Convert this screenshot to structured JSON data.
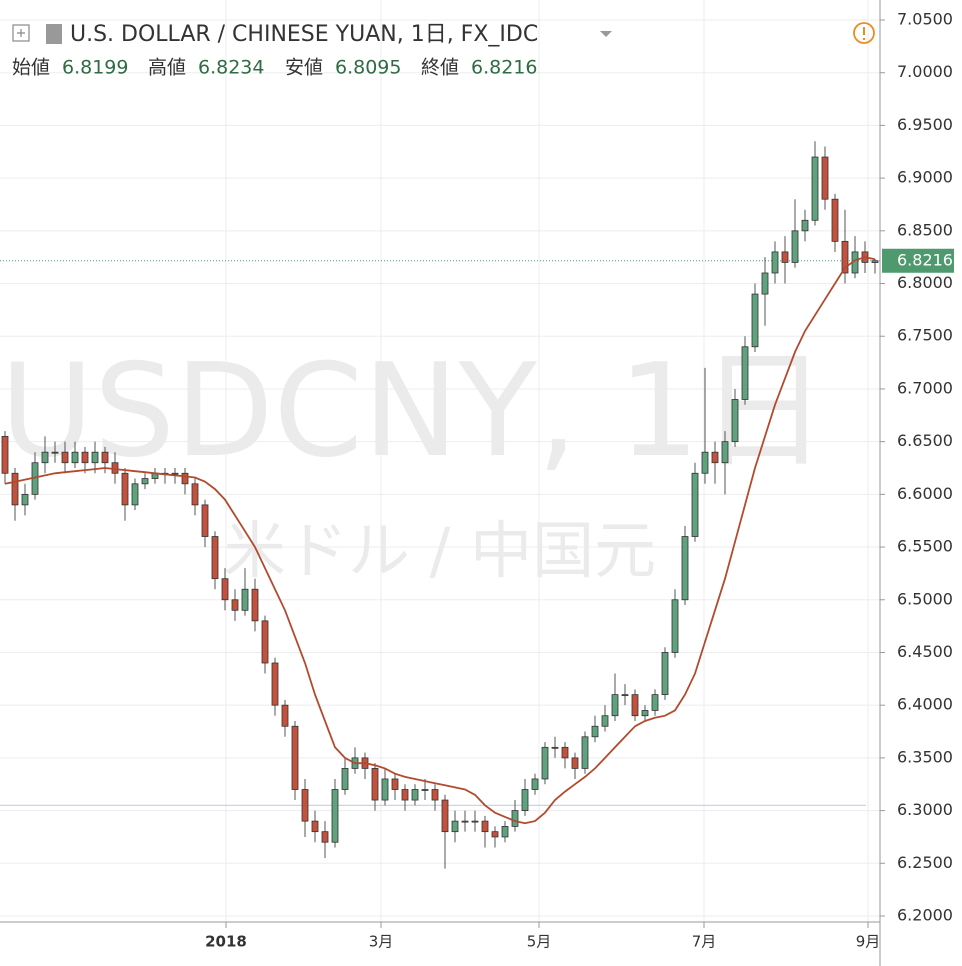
{
  "chart_data": {
    "type": "candlestick",
    "title": "U.S. DOLLAR / CHINESE YUAN, 1日, FX_IDC",
    "watermark": "USDCNY, 1日",
    "watermark_subtitle": "米ドル / 中国元",
    "ohlc_labels": [
      "始値",
      "高値",
      "安値",
      "終値"
    ],
    "open": [
      6.655,
      6.62,
      6.59,
      6.6,
      6.63,
      6.64,
      6.64,
      6.63,
      6.64,
      6.63,
      6.64,
      6.63,
      6.62,
      6.59,
      6.61,
      6.615,
      6.62,
      6.62,
      6.62,
      6.61,
      6.59,
      6.56,
      6.52,
      6.5,
      6.49,
      6.51,
      6.48,
      6.44,
      6.4,
      6.38,
      6.32,
      6.29,
      6.28,
      6.27,
      6.32,
      6.34,
      6.35,
      6.34,
      6.31,
      6.33,
      6.32,
      6.31,
      6.32,
      6.32,
      6.31,
      6.28,
      6.29,
      6.29,
      6.29,
      6.28,
      6.275,
      6.285,
      6.3,
      6.32,
      6.33,
      6.36,
      6.36,
      6.35,
      6.34,
      6.37,
      6.38,
      6.39,
      6.41,
      6.41,
      6.39,
      6.395,
      6.41,
      6.45,
      6.5,
      6.56,
      6.62,
      6.64,
      6.63,
      6.65,
      6.69,
      6.74,
      6.79,
      6.81,
      6.83,
      6.82,
      6.85,
      6.86,
      6.92,
      6.88,
      6.84,
      6.81,
      6.83,
      6.8199
    ],
    "high": [
      6.66,
      6.625,
      6.61,
      6.64,
      6.655,
      6.65,
      6.65,
      6.65,
      6.645,
      6.65,
      6.645,
      6.64,
      6.625,
      6.615,
      6.62,
      6.625,
      6.625,
      6.625,
      6.625,
      6.615,
      6.595,
      6.565,
      6.53,
      6.51,
      6.53,
      6.52,
      6.485,
      6.445,
      6.405,
      6.385,
      6.33,
      6.3,
      6.29,
      6.33,
      6.35,
      6.36,
      6.355,
      6.345,
      6.34,
      6.335,
      6.325,
      6.325,
      6.33,
      6.325,
      6.315,
      6.3,
      6.3,
      6.3,
      6.295,
      6.285,
      6.29,
      6.31,
      6.33,
      6.335,
      6.365,
      6.37,
      6.365,
      6.355,
      6.375,
      6.39,
      6.4,
      6.43,
      6.42,
      6.415,
      6.4,
      6.415,
      6.455,
      6.51,
      6.57,
      6.63,
      6.72,
      6.65,
      6.66,
      6.7,
      6.75,
      6.8,
      6.825,
      6.84,
      6.845,
      6.88,
      6.87,
      6.935,
      6.93,
      6.885,
      6.87,
      6.845,
      6.84,
      6.8234
    ],
    "low": [
      6.61,
      6.575,
      6.58,
      6.595,
      6.62,
      6.63,
      6.62,
      6.625,
      6.62,
      6.62,
      6.62,
      6.61,
      6.575,
      6.585,
      6.605,
      6.61,
      6.61,
      6.61,
      6.6,
      6.58,
      6.55,
      6.51,
      6.49,
      6.48,
      6.485,
      6.47,
      6.43,
      6.39,
      6.37,
      6.31,
      6.275,
      6.27,
      6.255,
      6.265,
      6.315,
      6.335,
      6.33,
      6.3,
      6.305,
      6.31,
      6.3,
      6.305,
      6.31,
      6.3,
      6.245,
      6.27,
      6.28,
      6.28,
      6.265,
      6.265,
      6.27,
      6.28,
      6.295,
      6.315,
      6.325,
      6.35,
      6.34,
      6.33,
      6.335,
      6.365,
      6.375,
      6.385,
      6.4,
      6.385,
      6.385,
      6.39,
      6.405,
      6.445,
      6.495,
      6.555,
      6.61,
      6.61,
      6.6,
      6.645,
      6.685,
      6.735,
      6.76,
      6.8,
      6.8,
      6.815,
      6.84,
      6.855,
      6.87,
      6.83,
      6.8,
      6.805,
      6.81,
      6.8095
    ],
    "close": [
      6.62,
      6.59,
      6.6,
      6.63,
      6.64,
      6.64,
      6.63,
      6.64,
      6.63,
      6.64,
      6.63,
      6.62,
      6.59,
      6.61,
      6.615,
      6.62,
      6.62,
      6.62,
      6.61,
      6.59,
      6.56,
      6.52,
      6.5,
      6.49,
      6.51,
      6.48,
      6.44,
      6.4,
      6.38,
      6.32,
      6.29,
      6.28,
      6.27,
      6.32,
      6.34,
      6.35,
      6.34,
      6.31,
      6.33,
      6.32,
      6.31,
      6.32,
      6.32,
      6.31,
      6.28,
      6.29,
      6.29,
      6.29,
      6.28,
      6.275,
      6.285,
      6.3,
      6.32,
      6.33,
      6.36,
      6.36,
      6.35,
      6.34,
      6.37,
      6.38,
      6.39,
      6.41,
      6.41,
      6.39,
      6.395,
      6.41,
      6.45,
      6.5,
      6.56,
      6.62,
      6.64,
      6.63,
      6.65,
      6.69,
      6.74,
      6.79,
      6.81,
      6.83,
      6.82,
      6.85,
      6.86,
      6.92,
      6.88,
      6.84,
      6.81,
      6.83,
      6.82,
      6.8216
    ],
    "up_color": "#5fa27e",
    "down_color": "#c2523d",
    "ma": {
      "color": "#b24a2e",
      "values": [
        6.61,
        6.612,
        6.614,
        6.616,
        6.618,
        6.62,
        6.621,
        6.622,
        6.623,
        6.624,
        6.625,
        6.624,
        6.623,
        6.622,
        6.621,
        6.62,
        6.619,
        6.618,
        6.617,
        6.616,
        6.612,
        6.605,
        6.595,
        6.58,
        6.565,
        6.55,
        6.53,
        6.51,
        6.49,
        6.465,
        6.44,
        6.41,
        6.385,
        6.36,
        6.35,
        6.345,
        6.345,
        6.343,
        6.34,
        6.335,
        6.332,
        6.33,
        6.328,
        6.326,
        6.324,
        6.322,
        6.32,
        6.315,
        6.305,
        6.298,
        6.294,
        6.29,
        6.288,
        6.29,
        6.298,
        6.31,
        6.318,
        6.325,
        6.332,
        6.34,
        6.35,
        6.36,
        6.37,
        6.38,
        6.385,
        6.388,
        6.39,
        6.395,
        6.41,
        6.43,
        6.46,
        6.49,
        6.52,
        6.555,
        6.59,
        6.625,
        6.655,
        6.685,
        6.71,
        6.735,
        6.755,
        6.77,
        6.785,
        6.8,
        6.815,
        6.822,
        6.825,
        6.823
      ]
    },
    "last_price_color": "#4e9a6e",
    "horizontal_line": {
      "value": 6.305,
      "color": "#b9d5ec"
    },
    "xlim": [
      -0.5,
      87.5
    ],
    "xticks": [
      {
        "value": 22.1,
        "label": "2018"
      },
      {
        "value": 37.6,
        "label": "3月"
      },
      {
        "value": 53.4,
        "label": "5月"
      },
      {
        "value": 69.9,
        "label": "7月"
      },
      {
        "value": 86.3,
        "label": "9月"
      }
    ],
    "ylim": [
      6.2,
      7.05
    ],
    "yticks": [
      {
        "value": 6.2,
        "label": "6.2000"
      },
      {
        "value": 6.25,
        "label": "6.2500"
      },
      {
        "value": 6.3,
        "label": "6.3000"
      },
      {
        "value": 6.35,
        "label": "6.3500"
      },
      {
        "value": 6.4,
        "label": "6.4000"
      },
      {
        "value": 6.45,
        "label": "6.4500"
      },
      {
        "value": 6.5,
        "label": "6.5000"
      },
      {
        "value": 6.55,
        "label": "6.5500"
      },
      {
        "value": 6.6,
        "label": "6.6000"
      },
      {
        "value": 6.65,
        "label": "6.6500"
      },
      {
        "value": 6.7,
        "label": "6.7000"
      },
      {
        "value": 6.75,
        "label": "6.7500"
      },
      {
        "value": 6.8,
        "label": "6.8000"
      },
      {
        "value": 6.85,
        "label": "6.8500"
      },
      {
        "value": 6.9,
        "label": "6.9000"
      },
      {
        "value": 6.95,
        "label": "6.9500"
      },
      {
        "value": 7.0,
        "label": "7.0000"
      },
      {
        "value": 7.05,
        "label": "7.0500"
      }
    ],
    "grid": true
  }
}
